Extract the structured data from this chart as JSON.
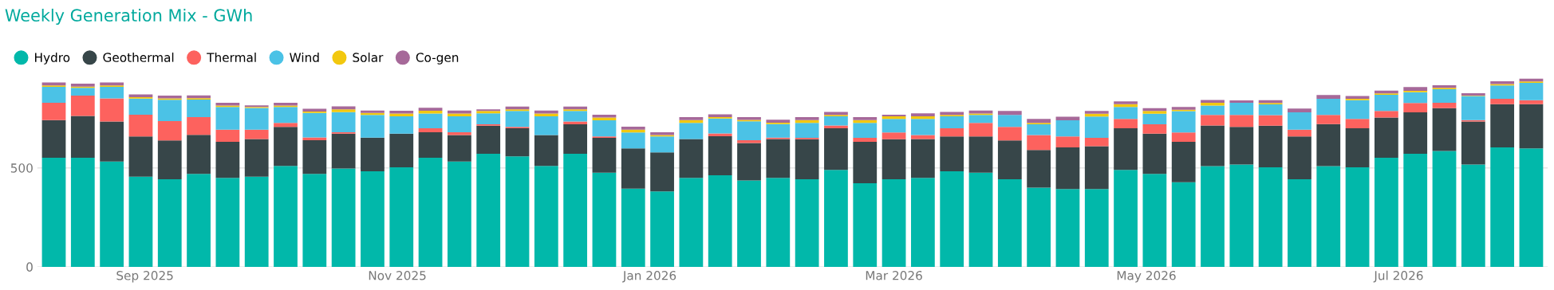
{
  "chart_data": {
    "type": "bar",
    "title": "Weekly Generation Mix - GWh",
    "stacked": true,
    "x": [
      "2025-08-10",
      "2025-08-17",
      "2025-08-24",
      "2025-08-31",
      "2025-09-07",
      "2025-09-14",
      "2025-09-21",
      "2025-09-28",
      "2025-10-05",
      "2025-10-12",
      "2025-10-19",
      "2025-10-26",
      "2025-11-02",
      "2025-11-09",
      "2025-11-16",
      "2025-11-23",
      "2025-11-30",
      "2025-12-07",
      "2025-12-14",
      "2025-12-21",
      "2025-12-28",
      "2026-01-04",
      "2026-01-11",
      "2026-01-18",
      "2026-01-25",
      "2026-02-01",
      "2026-02-08",
      "2026-02-15",
      "2026-02-22",
      "2026-03-01",
      "2026-03-08",
      "2026-03-15",
      "2026-03-22",
      "2026-03-29",
      "2026-04-05",
      "2026-04-12",
      "2026-04-19",
      "2026-04-26",
      "2026-05-03",
      "2026-05-10",
      "2026-05-17",
      "2026-05-24",
      "2026-05-31",
      "2026-06-07",
      "2026-06-14",
      "2026-06-21",
      "2026-06-28",
      "2026-07-05",
      "2026-07-12",
      "2026-07-19",
      "2026-07-26",
      "2026-08-02"
    ],
    "series": [
      {
        "name": "Hydro",
        "color": "#01b8aa",
        "values": [
          551,
          551,
          532,
          456,
          442,
          470,
          449,
          456,
          510,
          470,
          497,
          483,
          503,
          551,
          532,
          571,
          558,
          510,
          571,
          476,
          395,
          381,
          449,
          463,
          436,
          449,
          442,
          490,
          422,
          442,
          449,
          483,
          476,
          442,
          400,
          393,
          393,
          490,
          470,
          427,
          509,
          517,
          503,
          442,
          509,
          503,
          551,
          571,
          585,
          517,
          603,
          598
        ]
      },
      {
        "name": "Geothermal",
        "color": "#374649",
        "values": [
          190,
          212,
          202,
          203,
          197,
          197,
          183,
          190,
          197,
          170,
          176,
          170,
          170,
          129,
          134,
          142,
          142,
          156,
          149,
          176,
          203,
          197,
          197,
          197,
          190,
          197,
          203,
          210,
          210,
          203,
          197,
          176,
          183,
          197,
          190,
          210,
          217,
          210,
          203,
          205,
          205,
          190,
          210,
          217,
          212,
          197,
          203,
          210,
          217,
          217,
          219,
          224
        ]
      },
      {
        "name": "Thermal",
        "color": "#fd625e",
        "values": [
          88,
          102,
          117,
          110,
          97,
          90,
          61,
          47,
          20,
          14,
          7,
          0,
          0,
          20,
          14,
          7,
          7,
          0,
          14,
          7,
          0,
          0,
          0,
          14,
          14,
          7,
          7,
          14,
          20,
          34,
          20,
          41,
          68,
          68,
          76,
          56,
          42,
          47,
          47,
          47,
          54,
          61,
          54,
          34,
          47,
          47,
          34,
          47,
          27,
          7,
          27,
          20
        ]
      },
      {
        "name": "Wind",
        "color": "#4bc2e6",
        "values": [
          81,
          39,
          59,
          81,
          108,
          88,
          115,
          110,
          81,
          124,
          102,
          115,
          88,
          75,
          81,
          56,
          81,
          95,
          54,
          81,
          81,
          81,
          81,
          75,
          95,
          68,
          75,
          47,
          75,
          68,
          81,
          61,
          41,
          61,
          54,
          81,
          108,
          61,
          54,
          108,
          47,
          61,
          54,
          88,
          81,
          95,
          81,
          54,
          68,
          122,
          68,
          88
        ]
      },
      {
        "name": "Solar",
        "color": "#f2c80f",
        "values": [
          7,
          7,
          7,
          7,
          7,
          7,
          7,
          5,
          7,
          7,
          14,
          10,
          14,
          14,
          14,
          12,
          8,
          14,
          8,
          14,
          14,
          7,
          14,
          7,
          7,
          7,
          14,
          7,
          14,
          14,
          14,
          7,
          7,
          null,
          7,
          null,
          14,
          14,
          14,
          7,
          14,
          null,
          7,
          null,
          null,
          7,
          7,
          7,
          7,
          2,
          7,
          7
        ]
      },
      {
        "name": "Co-gen",
        "color": "#a66999",
        "values": [
          15,
          15,
          15,
          14,
          14,
          14,
          14,
          8,
          14,
          14,
          15,
          12,
          14,
          15,
          15,
          8,
          14,
          15,
          14,
          15,
          15,
          14,
          15,
          15,
          15,
          15,
          15,
          15,
          15,
          8,
          15,
          15,
          15,
          20,
          20,
          19,
          14,
          14,
          14,
          14,
          14,
          12,
          14,
          19,
          19,
          14,
          14,
          20,
          14,
          12,
          14,
          14
        ]
      }
    ],
    "xlim": [
      "2025-08-06",
      "2026-08-06"
    ],
    "xticks": [
      {
        "value": "2025-09-01",
        "label": "Sep 2025"
      },
      {
        "value": "2025-11-01",
        "label": "Nov 2025"
      },
      {
        "value": "2026-01-01",
        "label": "Jan 2026"
      },
      {
        "value": "2026-03-01",
        "label": "Mar 2026"
      },
      {
        "value": "2026-05-01",
        "label": "May 2026"
      },
      {
        "value": "2026-07-01",
        "label": "Jul 2026"
      }
    ],
    "ylim": [
      0,
      960
    ],
    "yticks": [
      0,
      500
    ],
    "grid": "y",
    "legend": "top left"
  }
}
